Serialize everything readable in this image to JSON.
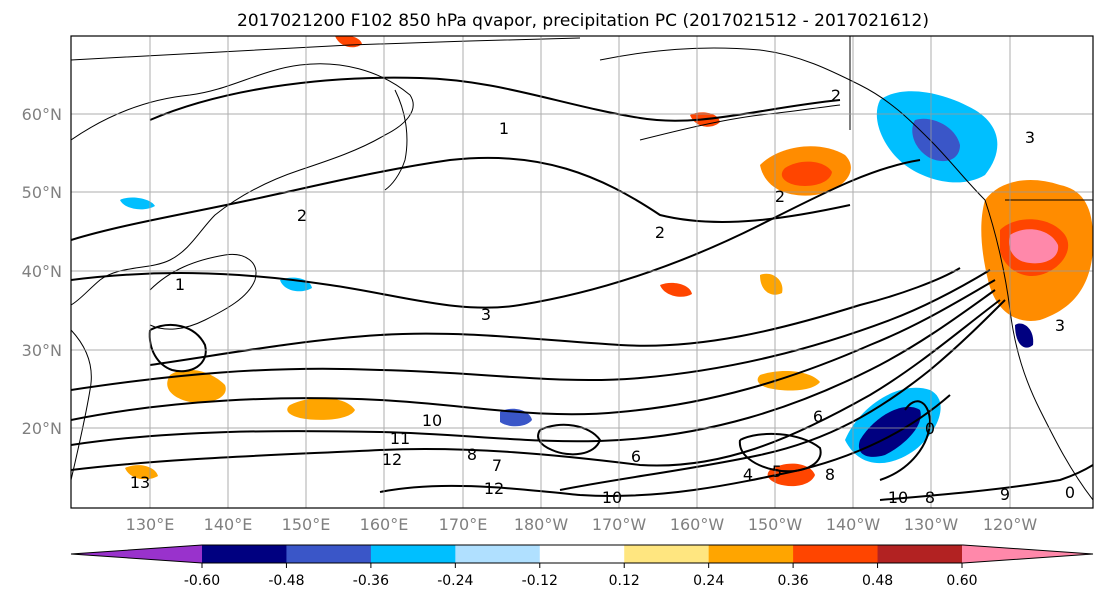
{
  "title": "2017021200 F102 850 hPa qvapor, precipitation PC (2017021512 - 2017021612)",
  "map": {
    "lon_labels": [
      "130°E",
      "140°E",
      "150°E",
      "160°E",
      "170°E",
      "180°W",
      "170°W",
      "160°W",
      "150°W",
      "140°W",
      "130°W",
      "120°W"
    ],
    "lat_labels": [
      "60°N",
      "50°N",
      "40°N",
      "30°N",
      "20°N"
    ],
    "grid": true
  },
  "contour_labels": [
    "1",
    "1",
    "2",
    "2",
    "2",
    "2",
    "3",
    "3",
    "11",
    "10",
    "12",
    "7",
    "8",
    "12",
    "6",
    "6",
    "4",
    "5",
    "8",
    "10",
    "8",
    "9",
    "10",
    "0",
    "0",
    "13",
    "3"
  ],
  "colorbar": {
    "extend": "both",
    "tick_labels": [
      "-0.60",
      "-0.48",
      "-0.36",
      "-0.24",
      "-0.12",
      "0.12",
      "0.24",
      "0.36",
      "0.48",
      "0.60"
    ],
    "colors": [
      "#9932cc",
      "#000080",
      "#3a56c8",
      "#00bfff",
      "#b0e0ff",
      "#ffffff",
      "#ffe680",
      "#ffa500",
      "#ff4500",
      "#b22222",
      "#ff88aa"
    ]
  }
}
